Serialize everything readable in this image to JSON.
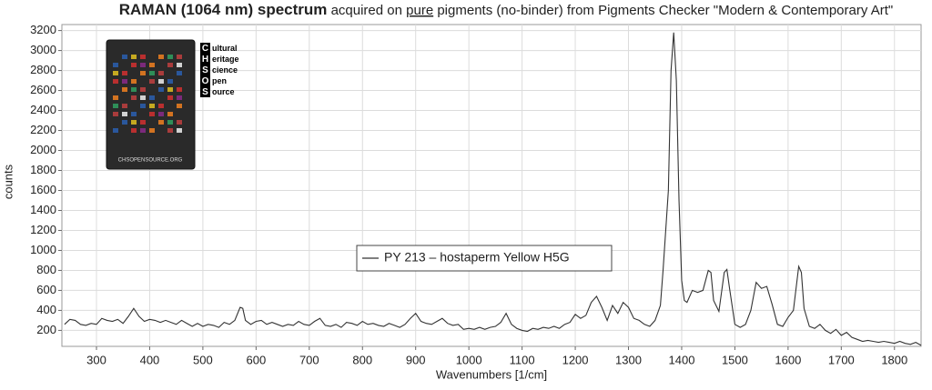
{
  "chart_data": {
    "type": "line",
    "title": [
      "RAMAN (1064 nm) spectrum",
      "acquired on",
      "pure",
      "pigments (no-binder) from Pigments Checker \"Modern & Contemporary Art\""
    ],
    "x_label": "Wavenumbers [1/cm]",
    "y_label": "counts",
    "xlim": [
      235,
      1850
    ],
    "ylim": [
      40,
      3260
    ],
    "xticks": [
      300,
      400,
      500,
      600,
      700,
      800,
      900,
      1000,
      1100,
      1200,
      1300,
      1400,
      1500,
      1600,
      1700,
      1800
    ],
    "yticks": [
      200,
      400,
      600,
      800,
      1000,
      1200,
      1400,
      1600,
      1800,
      2000,
      2200,
      2400,
      2600,
      2800,
      3000,
      3200
    ],
    "grid": true,
    "legend_position": "center",
    "x": [
      240,
      250,
      260,
      270,
      280,
      290,
      300,
      310,
      320,
      330,
      340,
      350,
      360,
      370,
      380,
      390,
      400,
      410,
      420,
      430,
      440,
      450,
      460,
      470,
      480,
      490,
      500,
      510,
      520,
      530,
      540,
      550,
      560,
      570,
      575,
      580,
      590,
      600,
      610,
      620,
      630,
      640,
      650,
      660,
      670,
      680,
      690,
      700,
      710,
      720,
      730,
      740,
      750,
      760,
      770,
      780,
      790,
      800,
      810,
      820,
      830,
      840,
      850,
      860,
      870,
      880,
      890,
      900,
      910,
      920,
      930,
      940,
      950,
      960,
      970,
      980,
      990,
      1000,
      1010,
      1020,
      1030,
      1040,
      1050,
      1060,
      1070,
      1080,
      1090,
      1100,
      1110,
      1120,
      1130,
      1140,
      1150,
      1160,
      1170,
      1180,
      1190,
      1200,
      1210,
      1220,
      1230,
      1240,
      1250,
      1260,
      1270,
      1280,
      1290,
      1300,
      1310,
      1320,
      1330,
      1340,
      1350,
      1360,
      1365,
      1370,
      1375,
      1380,
      1385,
      1390,
      1395,
      1400,
      1405,
      1410,
      1420,
      1430,
      1440,
      1450,
      1455,
      1460,
      1470,
      1480,
      1485,
      1490,
      1500,
      1510,
      1520,
      1530,
      1540,
      1550,
      1560,
      1570,
      1580,
      1590,
      1600,
      1610,
      1620,
      1625,
      1630,
      1640,
      1650,
      1660,
      1670,
      1680,
      1690,
      1700,
      1710,
      1720,
      1730,
      1740,
      1750,
      1760,
      1770,
      1780,
      1790,
      1800,
      1810,
      1820,
      1830,
      1840,
      1850
    ],
    "series": [
      {
        "name": "PY 213 – hostaperm Yellow H5G",
        "color": "#333333",
        "values": [
          260,
          310,
          300,
          260,
          250,
          270,
          260,
          320,
          300,
          290,
          310,
          270,
          340,
          420,
          340,
          290,
          310,
          300,
          280,
          300,
          280,
          260,
          300,
          270,
          240,
          270,
          240,
          260,
          250,
          230,
          280,
          260,
          300,
          430,
          420,
          300,
          260,
          290,
          300,
          260,
          280,
          260,
          240,
          260,
          250,
          290,
          260,
          250,
          290,
          320,
          250,
          240,
          260,
          230,
          280,
          270,
          250,
          290,
          260,
          270,
          250,
          240,
          270,
          250,
          230,
          260,
          320,
          370,
          290,
          270,
          260,
          290,
          320,
          270,
          250,
          260,
          210,
          220,
          210,
          230,
          210,
          230,
          240,
          280,
          370,
          260,
          220,
          200,
          190,
          220,
          210,
          230,
          220,
          240,
          220,
          260,
          280,
          360,
          320,
          350,
          480,
          540,
          430,
          300,
          450,
          370,
          480,
          430,
          320,
          300,
          260,
          240,
          300,
          450,
          800,
          1200,
          1600,
          2800,
          3180,
          2700,
          1500,
          700,
          500,
          480,
          600,
          580,
          600,
          800,
          780,
          500,
          390,
          780,
          810,
          620,
          260,
          230,
          260,
          400,
          680,
          620,
          640,
          460,
          260,
          240,
          330,
          400,
          840,
          780,
          420,
          240,
          220,
          260,
          200,
          170,
          210,
          150,
          180,
          130,
          110,
          90,
          100,
          90,
          80,
          90,
          80,
          70,
          90,
          70,
          60,
          80,
          50
        ]
      }
    ]
  },
  "logo": {
    "letters": [
      "C",
      "H",
      "S",
      "O",
      "S"
    ],
    "words": [
      "ultural",
      "eritage",
      "cience",
      "pen",
      "ource"
    ],
    "url": "CHSOPENSOURCE.ORG"
  }
}
